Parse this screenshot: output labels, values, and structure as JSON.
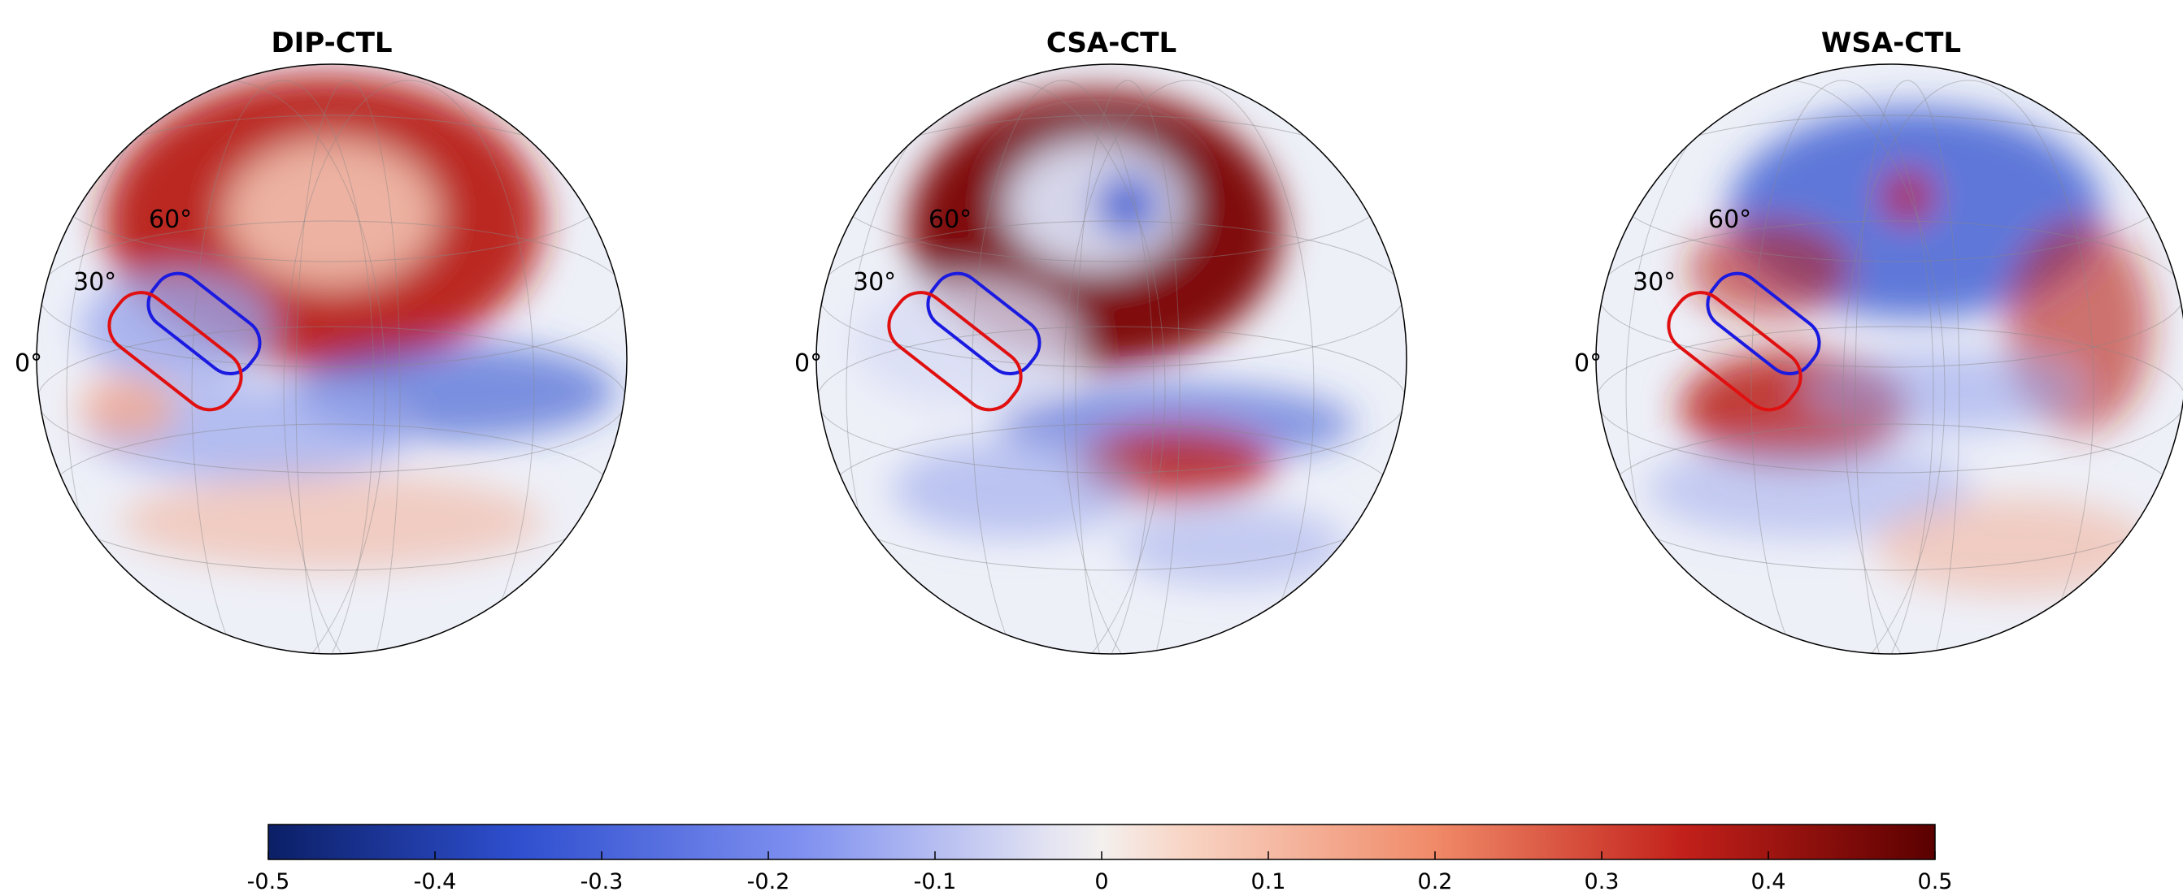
{
  "panels": [
    {
      "title": "DIP-CTL",
      "lat_labels": [
        "0°",
        "30°",
        "60°"
      ]
    },
    {
      "title": "CSA-CTL",
      "lat_labels": [
        "0°",
        "30°",
        "60°"
      ]
    },
    {
      "title": "WSA-CTL",
      "lat_labels": [
        "0°",
        "30°",
        "60°"
      ]
    }
  ],
  "colorbar": {
    "lim": [
      -0.5,
      0.5
    ],
    "ticks": [
      -0.5,
      -0.4,
      -0.3,
      -0.2,
      -0.1,
      0,
      0.1,
      0.2,
      0.3,
      0.4,
      0.5
    ]
  }
}
